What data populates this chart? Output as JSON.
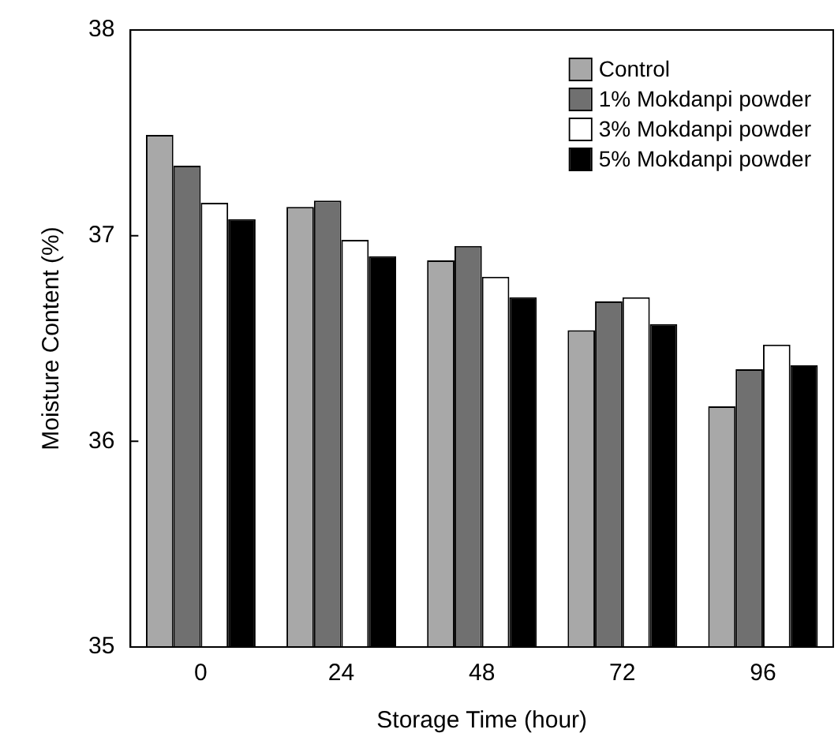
{
  "chart_data": {
    "type": "bar",
    "xlabel": "Storage Time (hour)",
    "ylabel": "Moisture Content (%)",
    "categories": [
      "0",
      "24",
      "48",
      "72",
      "96"
    ],
    "series": [
      {
        "name": "Control",
        "color": "#a8a8a8",
        "values": [
          37.49,
          37.14,
          36.88,
          36.54,
          36.17
        ]
      },
      {
        "name": "1% Mokdanpi powder",
        "color": "#707070",
        "values": [
          37.34,
          37.17,
          36.95,
          36.68,
          36.35
        ]
      },
      {
        "name": "3% Mokdanpi powder",
        "color": "#ffffff",
        "values": [
          37.16,
          36.98,
          36.8,
          36.7,
          36.47
        ]
      },
      {
        "name": "5% Mokdanpi powder",
        "color": "#000000",
        "values": [
          37.08,
          36.9,
          36.7,
          36.57,
          36.37
        ]
      }
    ],
    "ylim": [
      35,
      38
    ],
    "yticks": [
      35,
      36,
      37,
      38
    ],
    "grid": false,
    "legend": "top right"
  }
}
